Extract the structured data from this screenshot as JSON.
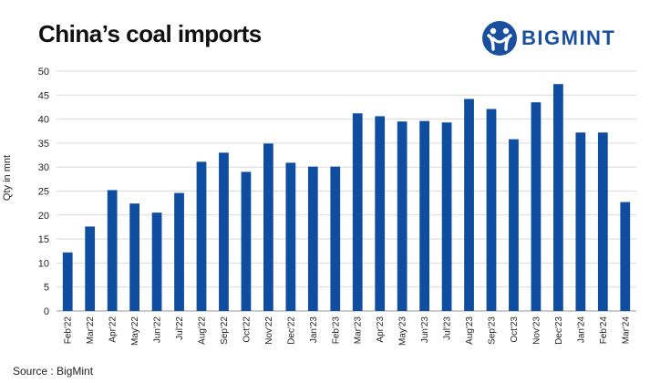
{
  "header": {
    "title": "China’s coal imports"
  },
  "logo": {
    "text": "BIGMINT",
    "color": "#1a4fa0"
  },
  "footer": {
    "source": "Source : BigMint"
  },
  "chart_data": {
    "type": "bar",
    "title": "China’s coal imports",
    "xlabel": "",
    "ylabel": "Qty in mnt",
    "ylim": [
      0,
      50
    ],
    "yticks": [
      0,
      5,
      10,
      15,
      20,
      25,
      30,
      35,
      40,
      45,
      50
    ],
    "grid": true,
    "bar_color": "#0f4da1",
    "categories": [
      "Feb'22",
      "Mar'22",
      "Apr'22",
      "May'22",
      "Jun'22",
      "Jul'22",
      "Aug'22",
      "Sep'22",
      "Oct'22",
      "Nov'22",
      "Dec'22",
      "Jan'23",
      "Feb'23",
      "Mar'23",
      "Apr'23",
      "May'23",
      "Jun'23",
      "Jul'23",
      "Aug'23",
      "Sep'23",
      "Oct'23",
      "Nov'23",
      "Dec'23",
      "Jan'24",
      "Feb'24",
      "Mar'24"
    ],
    "values": [
      12.2,
      17.6,
      25.2,
      22.4,
      20.5,
      24.6,
      31.1,
      33.0,
      29.0,
      34.9,
      30.9,
      30.1,
      30.1,
      41.2,
      40.6,
      39.5,
      39.6,
      39.3,
      44.2,
      42.1,
      35.8,
      43.5,
      47.3,
      37.2,
      37.2,
      22.7
    ]
  }
}
